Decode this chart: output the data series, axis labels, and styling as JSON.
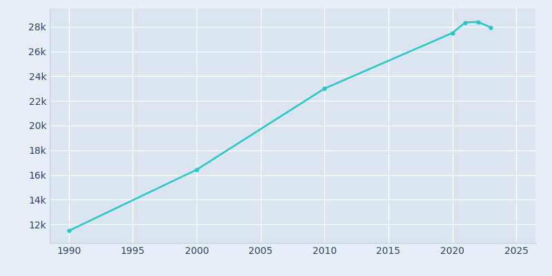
{
  "years": [
    1990,
    2000,
    2010,
    2020,
    2021,
    2022,
    2023
  ],
  "population": [
    11482,
    16430,
    23000,
    27500,
    28350,
    28400,
    27950
  ],
  "line_color": "#26C6C6",
  "marker_style": "o",
  "marker_size": 3.5,
  "line_width": 1.8,
  "background_color": "#E8EEF5",
  "plot_bg_color": "#DAE5EF",
  "grid_color": "#FFFFFF",
  "tick_color": "#2B3E6B",
  "xlim": [
    1988.5,
    2026.5
  ],
  "ylim": [
    10500,
    29500
  ],
  "xticks": [
    1990,
    1995,
    2000,
    2005,
    2010,
    2015,
    2020,
    2025
  ],
  "ytick_values": [
    12000,
    14000,
    16000,
    18000,
    20000,
    22000,
    24000,
    26000,
    28000
  ],
  "ytick_labels": [
    "12k",
    "14k",
    "16k",
    "18k",
    "20k",
    "22k",
    "24k",
    "26k",
    "28k"
  ],
  "spine_color": "#BFD0DE",
  "tick_fontsize": 10
}
